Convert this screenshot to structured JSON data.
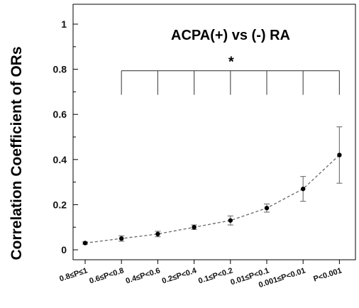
{
  "chart_data": {
    "type": "line",
    "title": "ACPA(+) vs (-) RA",
    "ylabel": "Correlation Coefficient of ORs",
    "xlabel": "",
    "ylim": [
      0,
      1
    ],
    "yticks": [
      "0",
      "0.2",
      "0.4",
      "0.6",
      "0.8",
      "1"
    ],
    "ytick_values": [
      0,
      0.2,
      0.4,
      0.6,
      0.8,
      1
    ],
    "categories": [
      "0.8≤P≤1",
      "0.6≤P<0.8",
      "0.4≤P<0.6",
      "0.2≤P<0.4",
      "0.1≤P<0.2",
      "0.01≤P<0.1",
      "0.001≤P<0.01",
      "P<0.001"
    ],
    "values": [
      0.03,
      0.05,
      0.07,
      0.1,
      0.13,
      0.185,
      0.27,
      0.42
    ],
    "error": [
      0.005,
      0.012,
      0.012,
      0.01,
      0.02,
      0.018,
      0.055,
      0.125
    ],
    "line_style": "dashed",
    "grid": false,
    "significance": {
      "label": "*",
      "from_category": 1,
      "to_category": 7,
      "y": 0.8
    }
  }
}
